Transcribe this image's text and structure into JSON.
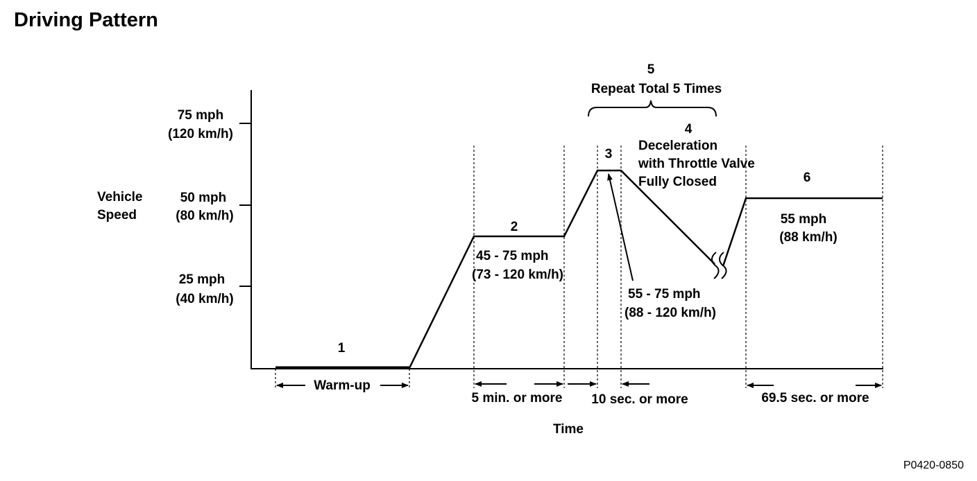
{
  "title": "Driving Pattern",
  "figure_id": "P0420-0850",
  "y_axis": {
    "label_line1": "Vehicle",
    "label_line2": "Speed",
    "ticks": [
      {
        "mph": "75 mph",
        "kmh": "(120 km/h)"
      },
      {
        "mph": "50 mph",
        "kmh": "(80 km/h)"
      },
      {
        "mph": "25 mph",
        "kmh": "(40 km/h)"
      }
    ]
  },
  "x_axis": {
    "label": "Time"
  },
  "steps": {
    "s1": {
      "num": "1",
      "duration": "Warm-up"
    },
    "s2": {
      "num": "2",
      "speed": "45 - 75 mph",
      "speed_kmh": "(73 - 120 km/h)",
      "duration": "5 min. or more"
    },
    "s3": {
      "num": "3",
      "speed": "55 - 75 mph",
      "speed_kmh": "(88 - 120 km/h)",
      "duration": "10 sec. or more"
    },
    "s4": {
      "num": "4",
      "line1": "Deceleration",
      "line2": "with Throttle Valve",
      "line3": "Fully Closed"
    },
    "s5": {
      "num": "5",
      "label": "Repeat Total 5 Times"
    },
    "s6": {
      "num": "6",
      "speed": "55 mph",
      "speed_kmh": "(88 km/h)",
      "duration": "69.5 sec. or more"
    }
  }
}
